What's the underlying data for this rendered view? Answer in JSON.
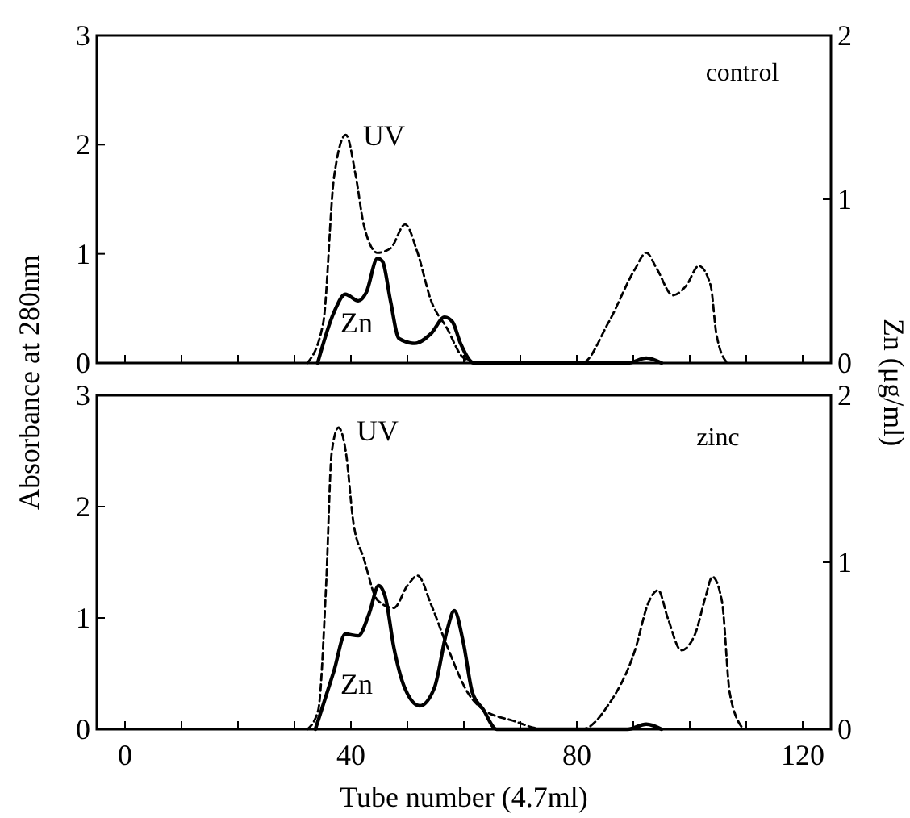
{
  "chart_data": [
    {
      "type": "line",
      "ylabel": "Absorbance at 280nm",
      "y2label": "Zn (μg/ml)",
      "annotations": [
        "UV",
        "Zn",
        "control"
      ],
      "xlim": [
        -5,
        125
      ],
      "xticks": [
        {
          "value": 0,
          "label": null
        },
        {
          "value": 10,
          "label": null
        },
        {
          "value": 20,
          "label": null
        },
        {
          "value": 30,
          "label": null
        },
        {
          "value": 40,
          "label": null
        },
        {
          "value": 50,
          "label": null
        },
        {
          "value": 60,
          "label": null
        },
        {
          "value": 70,
          "label": null
        },
        {
          "value": 80,
          "label": null
        },
        {
          "value": 90,
          "label": null
        },
        {
          "value": 100,
          "label": null
        },
        {
          "value": 110,
          "label": null
        },
        {
          "value": 120,
          "label": null
        }
      ],
      "ylim": [
        0,
        3
      ],
      "yticks": [
        0,
        1,
        2,
        3
      ],
      "y2lim": [
        0,
        2
      ],
      "y2ticks": [
        0,
        1,
        2
      ],
      "tick_labels": "y",
      "marker": "none",
      "series": [
        {
          "color": "#000000",
          "line_style": "dashed",
          "x": [
            32.3,
            35.1,
            37,
            39.1,
            40.9,
            42.3,
            44.7,
            47,
            49.6,
            51.8,
            54.2,
            57,
            59.9,
            62.8,
            80.9,
            85.6,
            90.3,
            92.3,
            94.2,
            97,
            99.4,
            101.6,
            103.7,
            104.7,
            106.6
          ],
          "values": [
            0,
            0.37,
            1.7,
            2.09,
            1.7,
            1.26,
            1.01,
            1.05,
            1.27,
            1.01,
            0.57,
            0.32,
            0.05,
            0,
            0,
            0.37,
            0.86,
            1.01,
            0.86,
            0.62,
            0.71,
            0.89,
            0.71,
            0.27,
            0
          ]
        },
        {
          "color": "#000000",
          "line_style": "solid",
          "axis": "y2",
          "x": [
            34.1,
            37,
            39,
            41.3,
            42.7,
            44.7,
            45.6,
            47,
            48.5,
            51.3,
            54.2,
            56.6,
            58,
            59.4,
            61.8,
            89,
            92.3,
            95
          ],
          "values": [
            0,
            0.31,
            0.42,
            0.38,
            0.43,
            0.64,
            0.62,
            0.38,
            0.15,
            0.12,
            0.18,
            0.28,
            0.25,
            0.12,
            0,
            0,
            0.03,
            0
          ]
        }
      ]
    },
    {
      "type": "line",
      "xlabel": "Tube number (4.7ml)",
      "annotations": [
        "UV",
        "Zn",
        "zinc"
      ],
      "xlim": [
        -5,
        125
      ],
      "xticks": [
        0,
        {
          "value": 10,
          "label": null
        },
        {
          "value": 20,
          "label": null
        },
        {
          "value": 30,
          "label": null
        },
        40,
        {
          "value": 50,
          "label": null
        },
        {
          "value": 60,
          "label": null
        },
        {
          "value": 70,
          "label": null
        },
        80,
        {
          "value": 90,
          "label": null
        },
        {
          "value": 100,
          "label": null
        },
        {
          "value": 110,
          "label": null
        },
        120
      ],
      "ylim": [
        0,
        3
      ],
      "yticks": [
        0,
        1,
        2,
        3
      ],
      "y2lim": [
        0,
        2
      ],
      "y2ticks": [
        0,
        1,
        2
      ],
      "marker": "none",
      "series": [
        {
          "color": "#000000",
          "line_style": "dashed",
          "x": [
            32.3,
            34.2,
            35.6,
            36.6,
            37.8,
            39.1,
            40.4,
            42.3,
            44.7,
            47.6,
            50,
            51.8,
            54.2,
            57,
            60.8,
            63.6,
            68.5,
            74.3,
            80.9,
            85.6,
            90.3,
            92.7,
            94.4,
            96.1,
            98.5,
            100.9,
            102.8,
            104,
            105.7,
            107.1,
            109.5
          ],
          "values": [
            0,
            0.17,
            1.29,
            2.49,
            2.71,
            2.49,
            1.87,
            1.53,
            1.16,
            1.09,
            1.29,
            1.38,
            1.12,
            0.75,
            0.32,
            0.17,
            0.08,
            0,
            0,
            0.22,
            0.71,
            1.14,
            1.25,
            1,
            0.71,
            0.85,
            1.19,
            1.37,
            1.15,
            0.32,
            0
          ]
        },
        {
          "color": "#000000",
          "line_style": "solid",
          "axis": "y2",
          "x": [
            33.7,
            37,
            39,
            41.3,
            43.2,
            44.9,
            46.1,
            47.6,
            49.5,
            52.2,
            54.8,
            57,
            58.3,
            59.9,
            61.5,
            63.4,
            65.8,
            89,
            92.3,
            95
          ],
          "values": [
            0,
            0.35,
            0.57,
            0.56,
            0.69,
            0.86,
            0.79,
            0.49,
            0.25,
            0.14,
            0.25,
            0.59,
            0.71,
            0.52,
            0.22,
            0.12,
            0,
            0,
            0.03,
            0
          ]
        }
      ]
    }
  ]
}
